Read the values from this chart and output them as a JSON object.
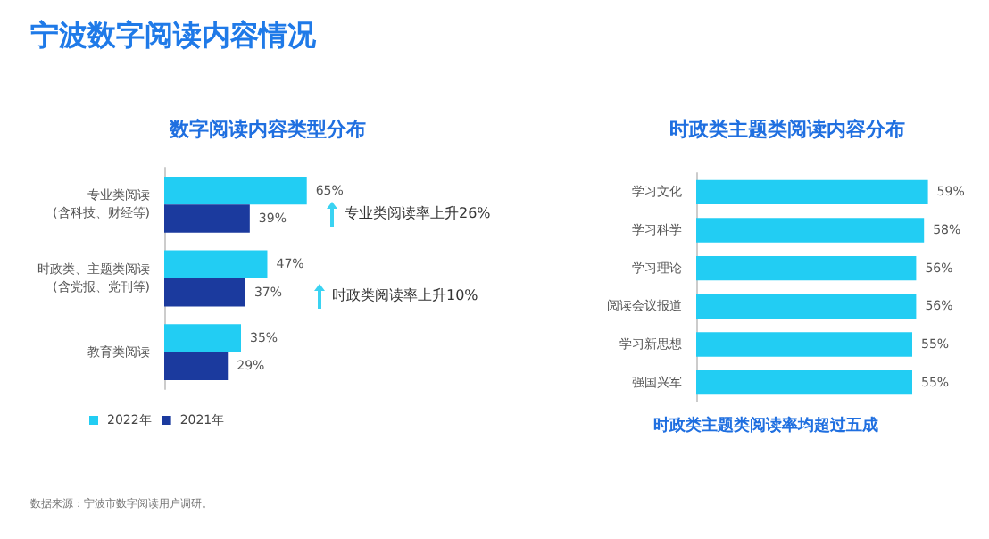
{
  "chart_data": [
    {
      "type": "bar",
      "orientation": "horizontal",
      "title": "数字阅读内容类型分布",
      "categories": [
        "专业类阅读\n(含科技、财经等)",
        "时政类、主题类阅读\n(含党报、党刊等)",
        "教育类阅读"
      ],
      "series": [
        {
          "name": "2022年",
          "color": "#22cdf3",
          "values": [
            65,
            47,
            35
          ],
          "value_labels": [
            "65%",
            "47%",
            "35%"
          ]
        },
        {
          "name": "2021年",
          "color": "#1b3a9e",
          "values": [
            39,
            37,
            29
          ],
          "value_labels": [
            "39%",
            "37%",
            "29%"
          ]
        }
      ],
      "legend": "bottom left",
      "annotations": [
        "宁波数字阅读内容情况",
        "专业类阅读率上升26%",
        "时政类阅读率上升10%",
        "数据来源：宁波市数字阅读用户调研。"
      ]
    },
    {
      "type": "bar",
      "orientation": "horizontal",
      "title": "时政类主题类阅读内容分布",
      "categories": [
        "学习文化",
        "学习科学",
        "学习理论",
        "阅读会议报道",
        "学习新思想",
        "强国兴军"
      ],
      "series": [
        {
          "color": "#22cdf3",
          "values": [
            59,
            58,
            56,
            56,
            55,
            55
          ],
          "value_labels": [
            "59%",
            "58%",
            "56%",
            "56%",
            "55%",
            "55%"
          ]
        }
      ],
      "annotations": [
        "时政类主题类阅读率均超过五成"
      ]
    }
  ]
}
